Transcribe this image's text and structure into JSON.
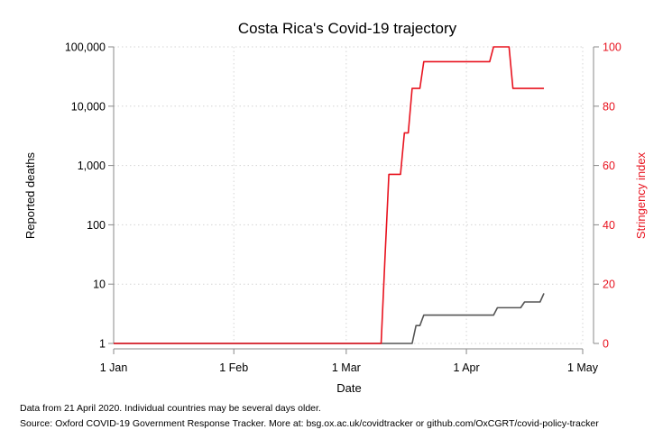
{
  "chart_data": {
    "type": "line",
    "title": "Costa Rica's Covid-19 trajectory",
    "xlabel": "Date",
    "ylabel_left": "Reported deaths",
    "ylabel_right": "Stringency index",
    "x_ticks": [
      {
        "date": "2020-01-01",
        "label": "1 Jan"
      },
      {
        "date": "2020-02-01",
        "label": "1 Feb"
      },
      {
        "date": "2020-03-01",
        "label": "1 Mar"
      },
      {
        "date": "2020-04-01",
        "label": "1 Apr"
      },
      {
        "date": "2020-05-01",
        "label": "1 May"
      }
    ],
    "xlim": [
      "2020-01-01",
      "2020-05-01"
    ],
    "left_axis": {
      "scale": "log",
      "ylim": [
        1,
        100000
      ],
      "ticks": [
        {
          "value": 1,
          "label": "1"
        },
        {
          "value": 10,
          "label": "10"
        },
        {
          "value": 100,
          "label": "100"
        },
        {
          "value": 1000,
          "label": "1,000"
        },
        {
          "value": 10000,
          "label": "10,000"
        },
        {
          "value": 100000,
          "label": "100,000"
        }
      ]
    },
    "right_axis": {
      "scale": "linear",
      "ylim": [
        0,
        100
      ],
      "ticks": [
        {
          "value": 0,
          "label": "0"
        },
        {
          "value": 20,
          "label": "20"
        },
        {
          "value": 40,
          "label": "40"
        },
        {
          "value": 60,
          "label": "60"
        },
        {
          "value": 80,
          "label": "80"
        },
        {
          "value": 100,
          "label": "100"
        }
      ]
    },
    "grid": true,
    "series": [
      {
        "axis": "left",
        "color": "#555555",
        "points": [
          {
            "x": "2020-01-01",
            "y": 1
          },
          {
            "x": "2020-03-18",
            "y": 1
          },
          {
            "x": "2020-03-19",
            "y": 2
          },
          {
            "x": "2020-03-20",
            "y": 2
          },
          {
            "x": "2020-03-21",
            "y": 3
          },
          {
            "x": "2020-04-08",
            "y": 3
          },
          {
            "x": "2020-04-09",
            "y": 4
          },
          {
            "x": "2020-04-15",
            "y": 4
          },
          {
            "x": "2020-04-16",
            "y": 5
          },
          {
            "x": "2020-04-20",
            "y": 5
          },
          {
            "x": "2020-04-21",
            "y": 7
          }
        ]
      },
      {
        "axis": "right",
        "color": "#e8131f",
        "points": [
          {
            "x": "2020-01-01",
            "y": 0
          },
          {
            "x": "2020-03-10",
            "y": 0
          },
          {
            "x": "2020-03-11",
            "y": 29
          },
          {
            "x": "2020-03-12",
            "y": 57
          },
          {
            "x": "2020-03-15",
            "y": 57
          },
          {
            "x": "2020-03-16",
            "y": 71
          },
          {
            "x": "2020-03-17",
            "y": 71
          },
          {
            "x": "2020-03-18",
            "y": 86
          },
          {
            "x": "2020-03-20",
            "y": 86
          },
          {
            "x": "2020-03-21",
            "y": 95
          },
          {
            "x": "2020-04-07",
            "y": 95
          },
          {
            "x": "2020-04-08",
            "y": 100
          },
          {
            "x": "2020-04-12",
            "y": 100
          },
          {
            "x": "2020-04-13",
            "y": 86
          },
          {
            "x": "2020-04-21",
            "y": 86
          }
        ]
      }
    ],
    "colors": {
      "left_axis": "#888888",
      "right_axis": "#e8131f",
      "grid": "#d4d4d4"
    }
  },
  "notes": {
    "line1": "Data from 21 April 2020. Individual countries may be several days older.",
    "line2": "Source: Oxford COVID-19 Government Response Tracker. More at: bsg.ox.ac.uk/covidtracker or github.com/OxCGRT/covid-policy-tracker"
  }
}
